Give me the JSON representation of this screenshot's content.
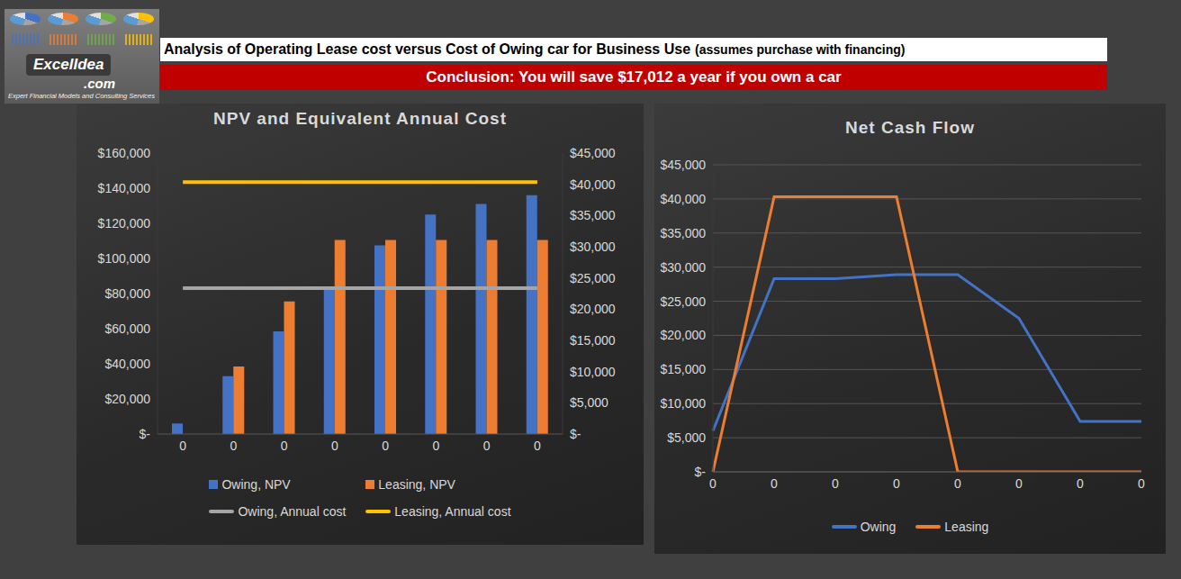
{
  "header": {
    "logo": {
      "name": "ExcelIdea",
      "domain": ".com",
      "tagline": "Expert Financial Models and Consulting Services"
    },
    "title": "Analysis of Operating Lease cost versus Cost of Owing car for Business Use",
    "title_note": "(assumes purchase with financing)",
    "conclusion": "Conclusion: You will save $17,012 a year if you own a car"
  },
  "chart_data": [
    {
      "type": "bar",
      "title": "NPV and Equivalent Annual Cost",
      "categories": [
        "0",
        "0",
        "0",
        "0",
        "0",
        "0",
        "0",
        "0"
      ],
      "series": [
        {
          "name": "Owing, NPV",
          "type": "bar",
          "color": "#4472c4",
          "values": [
            6000,
            33000,
            58500,
            84000,
            107500,
            125000,
            131000,
            136000
          ]
        },
        {
          "name": "Leasing, NPV",
          "type": "bar",
          "color": "#ed7d31",
          "values": [
            0,
            38500,
            75500,
            110500,
            110500,
            110500,
            110500,
            110500
          ]
        },
        {
          "name": "Owing, Annual cost",
          "type": "line",
          "color": "#a5a5a5",
          "axis": "y2",
          "values": [
            23348,
            23348,
            23348,
            23348,
            23348,
            23348,
            23348,
            23348
          ]
        },
        {
          "name": "Leasing, Annual cost",
          "type": "line",
          "color": "#ffc000",
          "axis": "y2",
          "values": [
            40360,
            40360,
            40360,
            40360,
            40360,
            40360,
            40360,
            40360
          ]
        }
      ],
      "ylim": [
        0,
        160000
      ],
      "yticks": [
        {
          "value": 0,
          "label": "$-"
        },
        {
          "value": 20000,
          "label": "$20,000"
        },
        {
          "value": 40000,
          "label": "$40,000"
        },
        {
          "value": 60000,
          "label": "$60,000"
        },
        {
          "value": 80000,
          "label": "$80,000"
        },
        {
          "value": 100000,
          "label": "$100,000"
        },
        {
          "value": 120000,
          "label": "$120,000"
        },
        {
          "value": 140000,
          "label": "$140,000"
        },
        {
          "value": 160000,
          "label": "$160,000"
        }
      ],
      "y2lim": [
        0,
        45000
      ],
      "y2ticks": [
        {
          "value": 0,
          "label": "$-"
        },
        {
          "value": 5000,
          "label": "$5,000"
        },
        {
          "value": 10000,
          "label": "$10,000"
        },
        {
          "value": 15000,
          "label": "$15,000"
        },
        {
          "value": 20000,
          "label": "$20,000"
        },
        {
          "value": 25000,
          "label": "$25,000"
        },
        {
          "value": 30000,
          "label": "$30,000"
        },
        {
          "value": 35000,
          "label": "$35,000"
        },
        {
          "value": 40000,
          "label": "$40,000"
        },
        {
          "value": 45000,
          "label": "$45,000"
        }
      ],
      "grid": false,
      "legend": "bottom"
    },
    {
      "type": "line",
      "title": "Net Cash Flow",
      "categories": [
        "0",
        "0",
        "0",
        "0",
        "0",
        "0",
        "0",
        "0"
      ],
      "series": [
        {
          "name": "Owing",
          "color": "#4472c4",
          "values": [
            6000,
            28300,
            28300,
            28900,
            28900,
            22500,
            7400,
            7400
          ]
        },
        {
          "name": "Leasing",
          "color": "#ed7d31",
          "values": [
            0,
            40300,
            40300,
            40300,
            0,
            0,
            0,
            0
          ]
        }
      ],
      "ylim": [
        0,
        45000
      ],
      "yticks": [
        {
          "value": 0,
          "label": "$-"
        },
        {
          "value": 5000,
          "label": "$5,000"
        },
        {
          "value": 10000,
          "label": "$10,000"
        },
        {
          "value": 15000,
          "label": "$15,000"
        },
        {
          "value": 20000,
          "label": "$20,000"
        },
        {
          "value": 25000,
          "label": "$25,000"
        },
        {
          "value": 30000,
          "label": "$30,000"
        },
        {
          "value": 35000,
          "label": "$35,000"
        },
        {
          "value": 40000,
          "label": "$40,000"
        },
        {
          "value": 45000,
          "label": "$45,000"
        }
      ],
      "grid": true,
      "legend": "bottom"
    }
  ]
}
